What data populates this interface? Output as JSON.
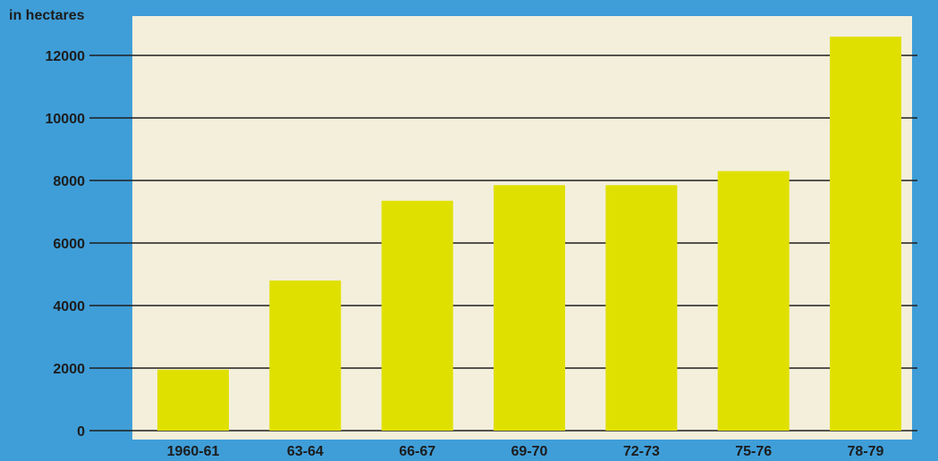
{
  "colors": {
    "background": "#3f9ed8",
    "plot_area": "#f3efdb",
    "bar": "#e0e000",
    "grid": "#1f1f1f",
    "text": "#1c1c1c"
  },
  "chart_data": {
    "type": "bar",
    "title": "",
    "xlabel": "",
    "ylabel": "in hectares",
    "categories": [
      "1960-61",
      "63-64",
      "66-67",
      "69-70",
      "72-73",
      "75-76",
      "78-79"
    ],
    "values": [
      1950,
      4800,
      7350,
      7850,
      7850,
      8300,
      12600
    ],
    "ylim": [
      0,
      13000
    ],
    "yticks": [
      0,
      2000,
      4000,
      6000,
      8000,
      10000,
      12000
    ],
    "grid": true,
    "legend": "none"
  }
}
